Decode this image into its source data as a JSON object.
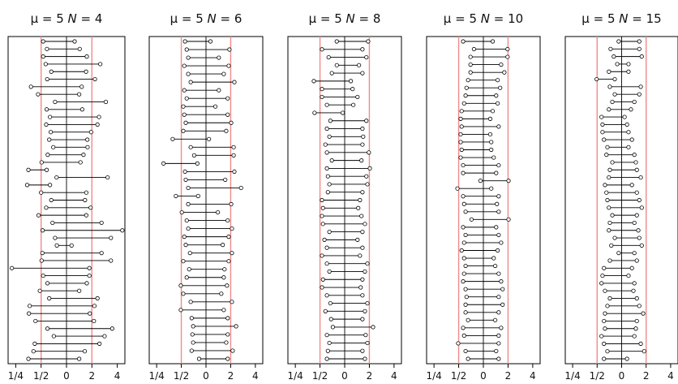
{
  "colors": {
    "frame": "#000000",
    "reference": "#f08a8a",
    "interval": "#000000",
    "center": "#000000"
  },
  "chart_data": [
    {
      "type": "scatter",
      "mu": "5",
      "N": "4",
      "xscale": "log2",
      "xlim": [
        -2.3,
        2.3
      ],
      "xticks": [
        -2,
        -1,
        0,
        1,
        2
      ],
      "xtick_labels": [
        "1/4",
        "1/2",
        "0",
        "2",
        "4"
      ],
      "reference_lines": [
        -1,
        1
      ],
      "center_line": 0,
      "intervals": [
        [
          -0.92,
          0.32
        ],
        [
          -0.77,
          0.52
        ],
        [
          -0.92,
          0.8
        ],
        [
          -0.82,
          1.33
        ],
        [
          -0.6,
          0.77
        ],
        [
          -0.76,
          1.12
        ],
        [
          -1.4,
          0.6
        ],
        [
          -1.12,
          0.5
        ],
        [
          -0.45,
          1.55
        ],
        [
          -0.78,
          0.62
        ],
        [
          -0.65,
          1.28
        ],
        [
          -0.8,
          1.22
        ],
        [
          -0.62,
          0.97
        ],
        [
          -0.68,
          0.82
        ],
        [
          -0.52,
          0.83
        ],
        [
          -0.74,
          0.67
        ],
        [
          -0.98,
          0.55
        ],
        [
          -1.5,
          -0.78
        ],
        [
          -0.39,
          1.62
        ],
        [
          -1.55,
          -0.65
        ],
        [
          -1.0,
          0.78
        ],
        [
          -0.6,
          0.73
        ],
        [
          -0.8,
          0.95
        ],
        [
          -1.1,
          0.78
        ],
        [
          -0.55,
          1.38
        ],
        [
          -0.94,
          2.2
        ],
        [
          -0.45,
          1.75
        ],
        [
          -0.38,
          0.2
        ],
        [
          -0.95,
          1.38
        ],
        [
          -0.98,
          1.75
        ],
        [
          -2.15,
          0.9
        ],
        [
          -0.92,
          0.9
        ],
        [
          -0.75,
          0.8
        ],
        [
          -1.05,
          0.5
        ],
        [
          -0.68,
          1.22
        ],
        [
          -1.45,
          1.1
        ],
        [
          -1.48,
          0.92
        ],
        [
          -1.22,
          1.08
        ],
        [
          -0.75,
          1.8
        ],
        [
          -0.5,
          1.5
        ],
        [
          -1.25,
          1.3
        ],
        [
          -1.3,
          0.72
        ],
        [
          -1.5,
          0.5
        ]
      ]
    },
    {
      "type": "scatter",
      "mu": "5",
      "N": "6",
      "xscale": "log2",
      "xlim": [
        -2.3,
        2.3
      ],
      "xticks": [
        -2,
        -1,
        0,
        1,
        2
      ],
      "xtick_labels": [
        "1/4",
        "1/2",
        "0",
        "2",
        "4"
      ],
      "reference_lines": [
        -1,
        1
      ],
      "center_line": 0,
      "intervals": [
        [
          -0.85,
          0.18
        ],
        [
          -0.78,
          0.95
        ],
        [
          -0.72,
          0.52
        ],
        [
          -0.88,
          0.92
        ],
        [
          -0.72,
          0.72
        ],
        [
          -0.62,
          1.15
        ],
        [
          -0.88,
          0.52
        ],
        [
          -0.78,
          0.88
        ],
        [
          -0.92,
          0.38
        ],
        [
          -0.88,
          0.88
        ],
        [
          -0.82,
          1.02
        ],
        [
          -0.92,
          0.82
        ],
        [
          -1.35,
          0.12
        ],
        [
          -0.62,
          1.12
        ],
        [
          -0.48,
          1.12
        ],
        [
          -1.72,
          -0.35
        ],
        [
          -0.85,
          1.15
        ],
        [
          -0.82,
          0.78
        ],
        [
          -0.72,
          1.42
        ],
        [
          -1.22,
          -0.32
        ],
        [
          -0.72,
          1.02
        ],
        [
          -0.98,
          0.48
        ],
        [
          -0.78,
          0.88
        ],
        [
          -0.72,
          1.05
        ],
        [
          -0.88,
          0.92
        ],
        [
          -0.82,
          0.68
        ],
        [
          -0.65,
          1.05
        ],
        [
          -0.92,
          0.92
        ],
        [
          -0.68,
          0.75
        ],
        [
          -0.78,
          0.72
        ],
        [
          -1.02,
          0.85
        ],
        [
          -0.92,
          0.62
        ],
        [
          -0.62,
          1.05
        ],
        [
          -1.02,
          0.72
        ],
        [
          -0.58,
          0.88
        ],
        [
          -0.52,
          1.22
        ],
        [
          -0.55,
          0.88
        ],
        [
          -0.52,
          0.82
        ],
        [
          -0.58,
          1.08
        ],
        [
          -0.28,
          0.88
        ]
      ]
    },
    {
      "type": "scatter",
      "mu": "5",
      "N": "8",
      "xscale": "log2",
      "xlim": [
        -2.3,
        2.3
      ],
      "xticks": [
        -2,
        -1,
        0,
        1,
        2
      ],
      "xtick_labels": [
        "1/4",
        "1/2",
        "0",
        "2",
        "4"
      ],
      "reference_lines": [
        -1,
        1
      ],
      "center_line": 0,
      "intervals": [
        [
          -0.32,
          0.95
        ],
        [
          -0.92,
          0.72
        ],
        [
          -0.65,
          0.88
        ],
        [
          -0.32,
          0.58
        ],
        [
          -0.52,
          0.72
        ],
        [
          -1.25,
          0.25
        ],
        [
          -0.92,
          0.32
        ],
        [
          -0.92,
          0.52
        ],
        [
          -0.72,
          0.35
        ],
        [
          -1.22,
          -0.08
        ],
        [
          -0.58,
          0.88
        ],
        [
          -0.72,
          0.72
        ],
        [
          -0.62,
          0.75
        ],
        [
          -0.78,
          0.72
        ],
        [
          -0.72,
          0.98
        ],
        [
          -0.52,
          0.68
        ],
        [
          -0.72,
          1.02
        ],
        [
          -0.68,
          0.88
        ],
        [
          -0.62,
          0.92
        ],
        [
          -0.68,
          0.72
        ],
        [
          -0.92,
          0.62
        ],
        [
          -0.88,
          0.55
        ],
        [
          -0.92,
          0.68
        ],
        [
          -0.88,
          0.82
        ],
        [
          -0.62,
          0.72
        ],
        [
          -0.82,
          0.52
        ],
        [
          -0.72,
          0.72
        ],
        [
          -0.92,
          0.62
        ],
        [
          -0.72,
          0.92
        ],
        [
          -0.62,
          0.82
        ],
        [
          -0.88,
          0.72
        ],
        [
          -0.92,
          0.65
        ],
        [
          -0.72,
          0.72
        ],
        [
          -0.58,
          0.92
        ],
        [
          -0.78,
          0.82
        ],
        [
          -0.55,
          0.72
        ],
        [
          -0.48,
          1.15
        ],
        [
          -0.72,
          0.85
        ],
        [
          -0.62,
          0.92
        ],
        [
          -0.68,
          0.72
        ],
        [
          -0.72,
          0.82
        ]
      ]
    },
    {
      "type": "scatter",
      "mu": "5",
      "N": "10",
      "xscale": "log2",
      "xlim": [
        -2.3,
        2.3
      ],
      "xticks": [
        -2,
        -1,
        0,
        1,
        2
      ],
      "xtick_labels": [
        "1/4",
        "1/2",
        "0",
        "2",
        "4"
      ],
      "reference_lines": [
        -1,
        1
      ],
      "center_line": 0,
      "intervals": [
        [
          -0.82,
          0.38
        ],
        [
          -0.38,
          0.98
        ],
        [
          -0.52,
          0.98
        ],
        [
          -0.52,
          0.72
        ],
        [
          -0.52,
          0.85
        ],
        [
          -0.62,
          0.58
        ],
        [
          -0.68,
          0.68
        ],
        [
          -0.72,
          0.52
        ],
        [
          -0.78,
          0.58
        ],
        [
          -0.88,
          0.38
        ],
        [
          -0.92,
          0.28
        ],
        [
          -0.88,
          0.62
        ],
        [
          -0.92,
          0.28
        ],
        [
          -0.92,
          0.32
        ],
        [
          -0.88,
          0.32
        ],
        [
          -0.92,
          0.42
        ],
        [
          -0.82,
          0.62
        ],
        [
          -0.82,
          0.52
        ],
        [
          -0.12,
          1.02
        ],
        [
          -1.05,
          0.32
        ],
        [
          -0.82,
          0.62
        ],
        [
          -0.78,
          0.55
        ],
        [
          -0.72,
          0.62
        ],
        [
          -0.48,
          1.02
        ],
        [
          -0.82,
          0.52
        ],
        [
          -0.72,
          0.62
        ],
        [
          -0.78,
          0.72
        ],
        [
          -0.88,
          0.58
        ],
        [
          -0.78,
          0.42
        ],
        [
          -0.72,
          0.48
        ],
        [
          -0.78,
          0.62
        ],
        [
          -0.82,
          0.72
        ],
        [
          -0.72,
          0.78
        ],
        [
          -0.68,
          0.62
        ],
        [
          -0.72,
          0.78
        ],
        [
          -0.72,
          0.62
        ],
        [
          -0.62,
          0.48
        ],
        [
          -0.82,
          0.72
        ],
        [
          -0.78,
          0.62
        ],
        [
          -1.02,
          0.62
        ],
        [
          -0.72,
          0.52
        ],
        [
          -0.62,
          0.62
        ]
      ]
    },
    {
      "type": "scatter",
      "mu": "5",
      "N": "15",
      "xscale": "log2",
      "xlim": [
        -2.3,
        2.3
      ],
      "xticks": [
        -2,
        -1,
        0,
        1,
        2
      ],
      "xtick_labels": [
        "1/4",
        "1/2",
        "0",
        "2",
        "4"
      ],
      "reference_lines": [
        -1,
        1
      ],
      "center_line": 0,
      "intervals": [
        [
          -0.12,
          0.72
        ],
        [
          -0.45,
          0.72
        ],
        [
          -0.32,
          0.82
        ],
        [
          -0.18,
          0.28
        ],
        [
          -0.52,
          0.28
        ],
        [
          -1.02,
          -0.28
        ],
        [
          -0.48,
          0.78
        ],
        [
          -0.28,
          0.72
        ],
        [
          -0.38,
          0.52
        ],
        [
          -0.52,
          0.38
        ],
        [
          -0.82,
          0.12
        ],
        [
          -0.78,
          0.22
        ],
        [
          -0.78,
          0.28
        ],
        [
          -0.72,
          0.42
        ],
        [
          -0.58,
          0.28
        ],
        [
          -0.62,
          0.52
        ],
        [
          -0.38,
          0.58
        ],
        [
          -0.48,
          0.62
        ],
        [
          -0.52,
          0.78
        ],
        [
          -0.68,
          0.42
        ],
        [
          -0.62,
          0.62
        ],
        [
          -0.58,
          0.72
        ],
        [
          -0.52,
          0.82
        ],
        [
          -0.38,
          0.62
        ],
        [
          -0.48,
          0.52
        ],
        [
          -0.52,
          0.68
        ],
        [
          -0.28,
          0.72
        ],
        [
          -0.42,
          0.82
        ],
        [
          -0.12,
          0.52
        ],
        [
          -0.48,
          0.62
        ],
        [
          -0.72,
          0.42
        ],
        [
          -0.78,
          0.28
        ],
        [
          -0.82,
          0.52
        ],
        [
          -0.68,
          0.48
        ],
        [
          -0.48,
          0.62
        ],
        [
          -0.58,
          0.72
        ],
        [
          -0.68,
          0.88
        ],
        [
          -0.72,
          0.62
        ],
        [
          -0.68,
          0.58
        ],
        [
          -0.82,
          0.52
        ],
        [
          -0.72,
          0.78
        ],
        [
          -0.58,
          0.92
        ],
        [
          -0.72,
          0.22
        ]
      ]
    }
  ]
}
